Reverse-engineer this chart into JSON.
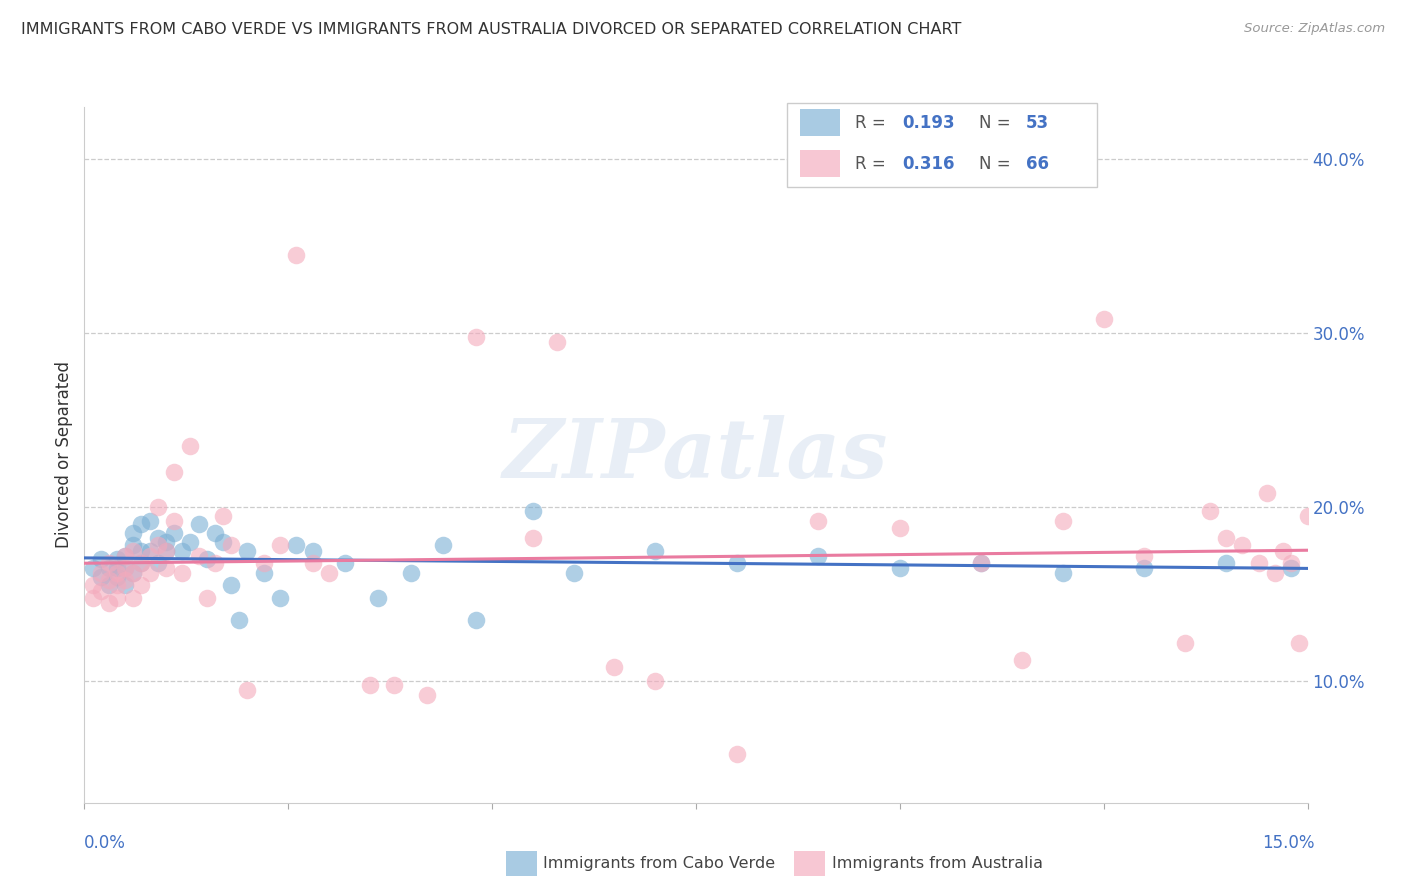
{
  "title": "IMMIGRANTS FROM CABO VERDE VS IMMIGRANTS FROM AUSTRALIA DIVORCED OR SEPARATED CORRELATION CHART",
  "source": "Source: ZipAtlas.com",
  "ylabel": "Divorced or Separated",
  "ylabel_right_ticks": [
    "10.0%",
    "20.0%",
    "30.0%",
    "40.0%"
  ],
  "ylabel_right_vals": [
    0.1,
    0.2,
    0.3,
    0.4
  ],
  "xlim": [
    0.0,
    0.15
  ],
  "ylim": [
    0.03,
    0.43
  ],
  "legend": {
    "blue_R": "0.193",
    "blue_N": "53",
    "pink_R": "0.316",
    "pink_N": "66"
  },
  "blue_color": "#7BAFD4",
  "pink_color": "#F4AABC",
  "blue_line_color": "#4472C4",
  "pink_line_color": "#E97BA0",
  "legend_text_color": "#4472C4",
  "watermark": "ZIPatlas",
  "cabo_verde_x": [
    0.001,
    0.002,
    0.002,
    0.003,
    0.003,
    0.004,
    0.004,
    0.004,
    0.005,
    0.005,
    0.005,
    0.006,
    0.006,
    0.006,
    0.007,
    0.007,
    0.007,
    0.008,
    0.008,
    0.009,
    0.009,
    0.01,
    0.01,
    0.011,
    0.012,
    0.013,
    0.014,
    0.015,
    0.016,
    0.017,
    0.018,
    0.019,
    0.02,
    0.022,
    0.024,
    0.026,
    0.028,
    0.032,
    0.036,
    0.04,
    0.044,
    0.048,
    0.055,
    0.06,
    0.07,
    0.08,
    0.09,
    0.1,
    0.11,
    0.12,
    0.13,
    0.14,
    0.148
  ],
  "cabo_verde_y": [
    0.165,
    0.17,
    0.16,
    0.165,
    0.155,
    0.17,
    0.165,
    0.16,
    0.172,
    0.165,
    0.155,
    0.185,
    0.178,
    0.162,
    0.19,
    0.175,
    0.168,
    0.192,
    0.175,
    0.182,
    0.168,
    0.18,
    0.175,
    0.185,
    0.175,
    0.18,
    0.19,
    0.17,
    0.185,
    0.18,
    0.155,
    0.135,
    0.175,
    0.162,
    0.148,
    0.178,
    0.175,
    0.168,
    0.148,
    0.162,
    0.178,
    0.135,
    0.198,
    0.162,
    0.175,
    0.168,
    0.172,
    0.165,
    0.168,
    0.162,
    0.165,
    0.168,
    0.165
  ],
  "australia_x": [
    0.001,
    0.001,
    0.002,
    0.002,
    0.003,
    0.003,
    0.003,
    0.004,
    0.004,
    0.004,
    0.005,
    0.005,
    0.005,
    0.006,
    0.006,
    0.006,
    0.007,
    0.007,
    0.008,
    0.008,
    0.009,
    0.009,
    0.01,
    0.01,
    0.011,
    0.011,
    0.012,
    0.013,
    0.014,
    0.015,
    0.016,
    0.017,
    0.018,
    0.02,
    0.022,
    0.024,
    0.026,
    0.028,
    0.03,
    0.035,
    0.038,
    0.042,
    0.048,
    0.055,
    0.058,
    0.065,
    0.07,
    0.08,
    0.09,
    0.1,
    0.11,
    0.115,
    0.12,
    0.125,
    0.13,
    0.135,
    0.138,
    0.14,
    0.142,
    0.144,
    0.145,
    0.146,
    0.147,
    0.148,
    0.149,
    0.15
  ],
  "australia_y": [
    0.155,
    0.148,
    0.162,
    0.152,
    0.168,
    0.158,
    0.145,
    0.162,
    0.155,
    0.148,
    0.172,
    0.165,
    0.158,
    0.175,
    0.162,
    0.148,
    0.168,
    0.155,
    0.172,
    0.162,
    0.2,
    0.178,
    0.175,
    0.165,
    0.22,
    0.192,
    0.162,
    0.235,
    0.172,
    0.148,
    0.168,
    0.195,
    0.178,
    0.095,
    0.168,
    0.178,
    0.345,
    0.168,
    0.162,
    0.098,
    0.098,
    0.092,
    0.298,
    0.182,
    0.295,
    0.108,
    0.1,
    0.058,
    0.192,
    0.188,
    0.168,
    0.112,
    0.192,
    0.308,
    0.172,
    0.122,
    0.198,
    0.182,
    0.178,
    0.168,
    0.208,
    0.162,
    0.175,
    0.168,
    0.122,
    0.195
  ]
}
